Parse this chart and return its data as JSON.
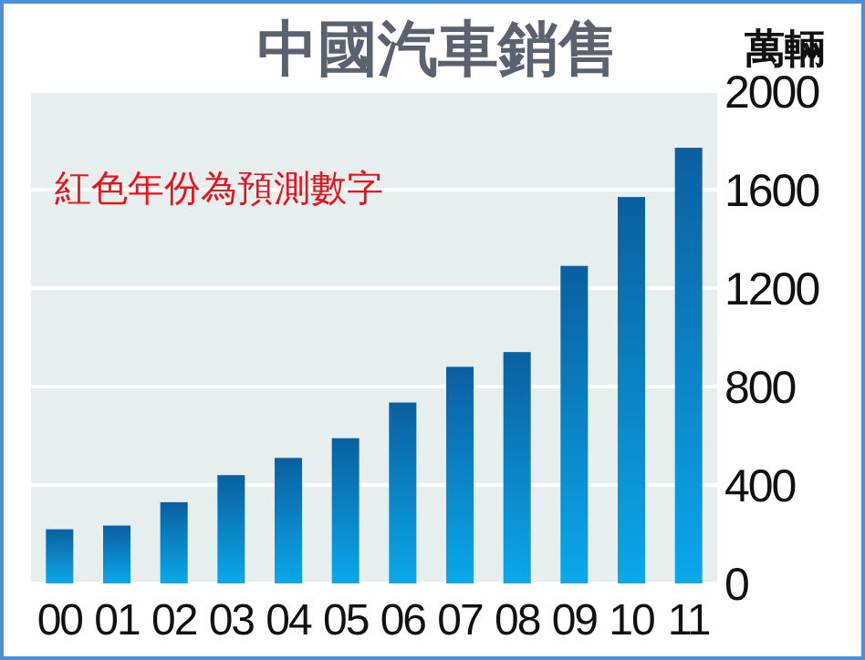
{
  "chart_data": {
    "type": "bar",
    "title": "中國汽車銷售",
    "ylabel": "萬輛",
    "categories": [
      "00",
      "01",
      "02",
      "03",
      "04",
      "05",
      "06",
      "07",
      "08",
      "09",
      "10",
      "11"
    ],
    "series": [
      {
        "color": "#0a5fa0",
        "values": [
          220,
          235,
          330,
          440,
          510,
          590,
          735,
          880,
          940,
          1290,
          1570,
          1770
        ]
      }
    ],
    "ylim": [
      0,
      2000
    ],
    "yticks": [
      0,
      400,
      800,
      1200,
      1600,
      2000
    ],
    "grid": "y",
    "annotations": [
      "紅色年份為預測數字"
    ]
  }
}
